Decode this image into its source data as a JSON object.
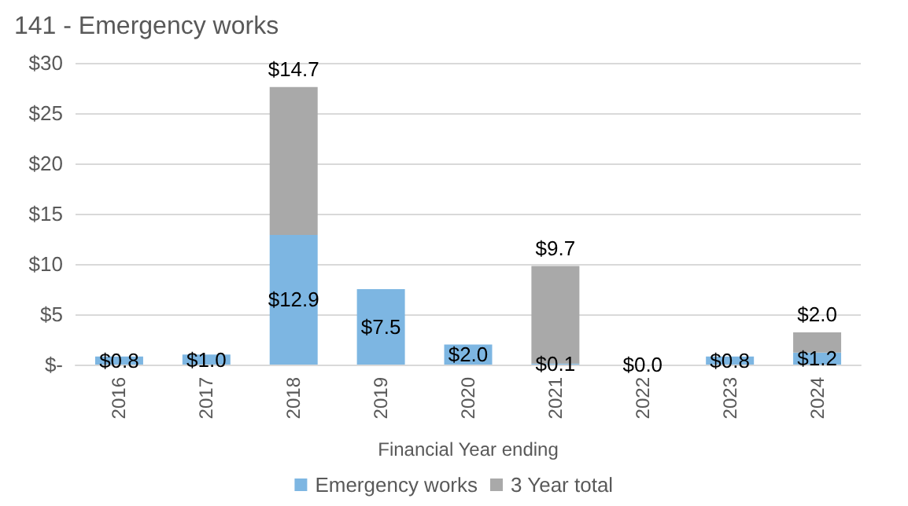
{
  "chart_data": {
    "type": "bar",
    "title": "141 - Emergency works",
    "xlabel": "Financial Year ending",
    "categories": [
      "2016",
      "2017",
      "2018",
      "2019",
      "2020",
      "2021",
      "2022",
      "2023",
      "2024"
    ],
    "stacked": true,
    "series": [
      {
        "name": "Emergency works",
        "color": "#7db6e2",
        "values": [
          0.8,
          1.0,
          12.9,
          7.5,
          2.0,
          0.1,
          0.0,
          0.8,
          1.2
        ],
        "value_labels": [
          "$0.8",
          "$1.0",
          "$12.9",
          "$7.5",
          "$2.0",
          "$0.1",
          "$0.0",
          "$0.8",
          "$1.2"
        ]
      },
      {
        "name": "3 Year total",
        "color": "#a9a9a9",
        "values": [
          null,
          null,
          14.7,
          null,
          null,
          9.7,
          null,
          null,
          2.0
        ],
        "value_labels": [
          null,
          null,
          "$14.7",
          null,
          null,
          "$9.7",
          null,
          null,
          "$2.0"
        ]
      }
    ],
    "ylim": [
      0,
      30
    ],
    "yticks": [
      {
        "value": 0,
        "label": "$-"
      },
      {
        "value": 5,
        "label": "$5"
      },
      {
        "value": 10,
        "label": "$10"
      },
      {
        "value": 15,
        "label": "$15"
      },
      {
        "value": 20,
        "label": "$20"
      },
      {
        "value": 25,
        "label": "$25"
      },
      {
        "value": 30,
        "label": "$30"
      }
    ],
    "grid": "y",
    "legend": "bottom"
  }
}
